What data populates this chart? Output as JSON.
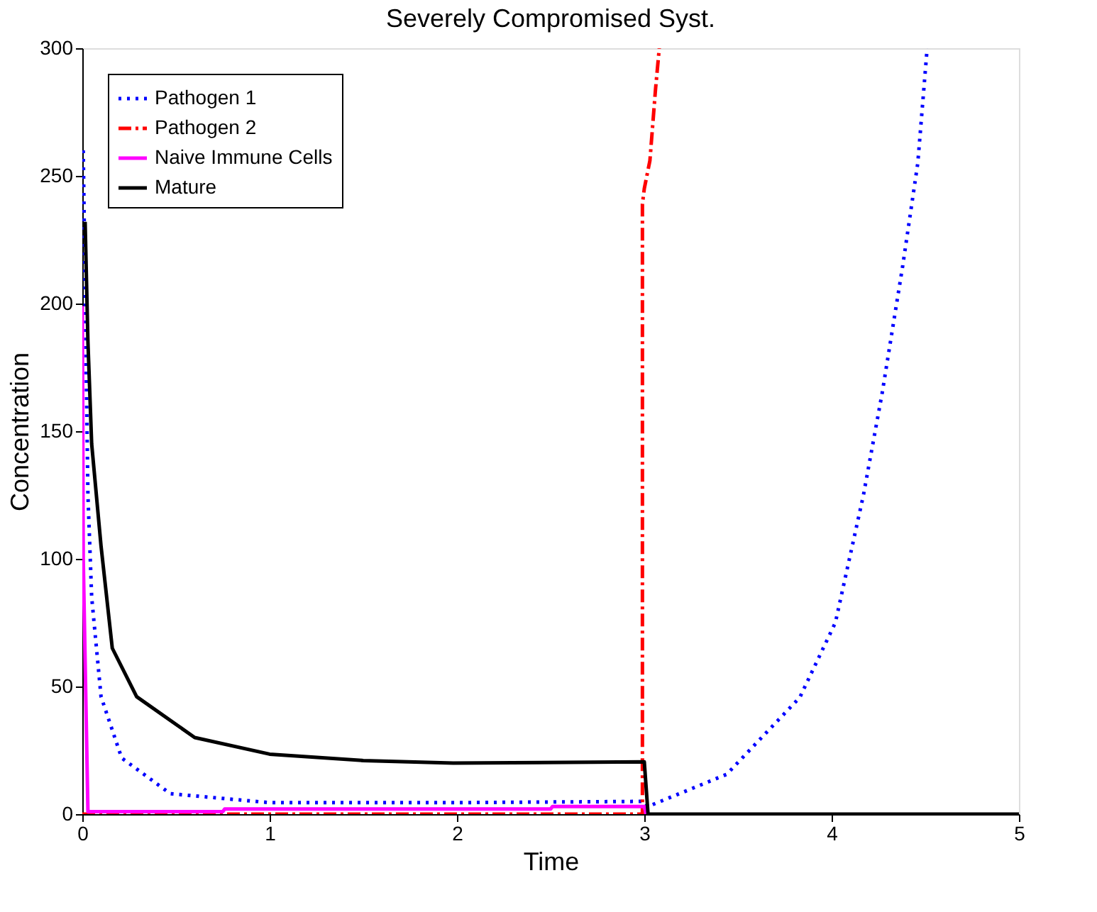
{
  "chart_data": {
    "type": "line",
    "title": "Severely Compromised Syst.",
    "xlabel": "Time",
    "ylabel": "Concentration",
    "xlim": [
      0,
      5
    ],
    "xticks": [
      0,
      1,
      2,
      3,
      4,
      5
    ],
    "ylim": [
      0,
      300
    ],
    "yticks": [
      0,
      50,
      100,
      150,
      200,
      250,
      300
    ],
    "grid": false,
    "legend": "top left",
    "marker": "none",
    "series": [
      {
        "name": "Pathogen 1",
        "color": "#0000ff",
        "line_style": "dotted",
        "x": [
          0.005,
          0.03,
          0.05,
          0.1,
          0.21,
          0.47,
          1,
          2,
          3,
          3.02,
          3.44,
          3.83,
          4.02,
          4.17,
          4.27,
          4.38,
          4.46,
          4.51
        ],
        "values": [
          260,
          125,
          85,
          46,
          22,
          8,
          4.5,
          4.5,
          5,
          3,
          15.6,
          45.7,
          75,
          125,
          165,
          215,
          255,
          300
        ]
      },
      {
        "name": "Pathogen 2",
        "color": "#ff0000",
        "line_style": "dashdot",
        "x": [
          0,
          1,
          2,
          2.99,
          2.99,
          2.99,
          3.0,
          3.03,
          3.06,
          3.08
        ],
        "values": [
          0,
          0,
          0,
          0,
          125,
          239,
          245,
          256,
          284,
          300
        ]
      },
      {
        "name": "Naive Immune Cells",
        "color": "#ff00ff",
        "line_style": "solid",
        "x": [
          0,
          0.005,
          0.03,
          0.75,
          0.76,
          2.5,
          2.51,
          3.0,
          3.01
        ],
        "values": [
          199,
          100,
          1,
          1,
          2,
          2,
          3,
          3,
          0
        ]
      },
      {
        "name": "Mature",
        "color": "#000000",
        "line_style": "solid",
        "x": [
          0.015,
          0.03,
          0.05,
          0.1,
          0.16,
          0.29,
          0.6,
          1,
          1.5,
          1.98,
          3,
          3.02,
          5
        ],
        "values": [
          232,
          185,
          145,
          105,
          65,
          46,
          30,
          23.5,
          21,
          20,
          20.5,
          0,
          0
        ]
      }
    ]
  }
}
